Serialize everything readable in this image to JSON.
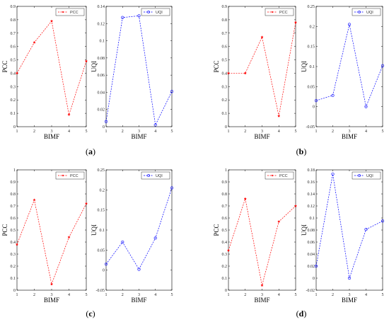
{
  "panels": [
    {
      "label": "(a)",
      "label_letter": "a"
    },
    {
      "label": "(b)",
      "label_letter": "b"
    },
    {
      "label": "(c)",
      "label_letter": "c"
    },
    {
      "label": "(d)",
      "label_letter": "d"
    }
  ],
  "colors": {
    "pcc": "#ff0000",
    "uqi": "#0000ff",
    "axis": "#000000"
  },
  "chart_data": [
    {
      "panel": "a",
      "type": "line",
      "xlabel": "BIMF",
      "ylabel": "PCC",
      "x": [
        1,
        2,
        3,
        4,
        5
      ],
      "xlim": [
        1,
        5
      ],
      "ylim": [
        0,
        0.9
      ],
      "yticks": [
        "0",
        "0.1",
        "0.2",
        "0.3",
        "0.4",
        "0.5",
        "0.6",
        "0.7",
        "0.8",
        "0.9"
      ],
      "xticks": [
        "1",
        "2",
        "3",
        "4",
        "5"
      ],
      "series": [
        {
          "name": "PCC",
          "values": [
            0.4,
            0.63,
            0.79,
            0.09,
            0.49
          ],
          "marker": "star",
          "color": "#ff0000"
        }
      ],
      "legend": "top-right"
    },
    {
      "panel": "a",
      "type": "line",
      "xlabel": "BIMF",
      "ylabel": "UQI",
      "x": [
        1,
        2,
        3,
        4,
        5
      ],
      "xlim": [
        1,
        5
      ],
      "ylim": [
        0,
        0.14
      ],
      "yticks": [
        "0",
        "0.02",
        "0.04",
        "0.06",
        "0.08",
        "0.1",
        "0.12",
        "0.14"
      ],
      "xticks": [
        "1",
        "2",
        "3",
        "4",
        "5"
      ],
      "series": [
        {
          "name": "UQI",
          "values": [
            0.006,
            0.127,
            0.129,
            0.002,
            0.041
          ],
          "marker": "circle",
          "color": "#0000ff"
        }
      ],
      "legend": "top-right"
    },
    {
      "panel": "b",
      "type": "line",
      "xlabel": "BIMF",
      "ylabel": "PCC",
      "x": [
        1,
        2,
        3,
        4,
        5
      ],
      "xlim": [
        1,
        5
      ],
      "ylim": [
        0,
        0.9
      ],
      "yticks": [
        "0",
        "0.1",
        "0.2",
        "0.3",
        "0.4",
        "0.5",
        "0.6",
        "0.7",
        "0.8",
        "0.9"
      ],
      "xticks": [
        "1",
        "2",
        "3",
        "4",
        "5"
      ],
      "series": [
        {
          "name": "PCC",
          "values": [
            0.4,
            0.4,
            0.67,
            0.08,
            0.78
          ],
          "marker": "star",
          "color": "#ff0000"
        }
      ],
      "legend": "top-right"
    },
    {
      "panel": "b",
      "type": "line",
      "xlabel": "BIMF",
      "ylabel": "UQI",
      "x": [
        1,
        2,
        3,
        4,
        5
      ],
      "xlim": [
        1,
        5
      ],
      "ylim": [
        -0.05,
        0.25
      ],
      "yticks": [
        "-0.05",
        "0",
        "0.05",
        "0.1",
        "0.15",
        "0.2",
        "0.25"
      ],
      "xticks": [
        "1",
        "2",
        "3",
        "4",
        "5"
      ],
      "series": [
        {
          "name": "UQI",
          "values": [
            0.015,
            0.028,
            0.205,
            0.0,
            0.102
          ],
          "marker": "circle",
          "color": "#0000ff"
        }
      ],
      "legend": "top-right"
    },
    {
      "panel": "c",
      "type": "line",
      "xlabel": "BIMF",
      "ylabel": "PCC",
      "x": [
        1,
        2,
        3,
        4,
        5
      ],
      "xlim": [
        1,
        5
      ],
      "ylim": [
        0,
        1
      ],
      "yticks": [
        "0",
        "0.1",
        "0.2",
        "0.3",
        "0.4",
        "0.5",
        "0.6",
        "0.7",
        "0.8",
        "0.9",
        "1"
      ],
      "xticks": [
        "1",
        "2",
        "3",
        "4",
        "5"
      ],
      "series": [
        {
          "name": "PCC",
          "values": [
            0.38,
            0.75,
            0.05,
            0.44,
            0.72
          ],
          "marker": "star",
          "color": "#ff0000"
        }
      ],
      "legend": "top-right"
    },
    {
      "panel": "c",
      "type": "line",
      "xlabel": "BIMF",
      "ylabel": "UQI",
      "x": [
        1,
        2,
        3,
        4,
        5
      ],
      "xlim": [
        1,
        5
      ],
      "ylim": [
        -0.05,
        0.25
      ],
      "yticks": [
        "-0.05",
        "0",
        "0.05",
        "0.1",
        "0.15",
        "0.2",
        "0.25"
      ],
      "xticks": [
        "1",
        "2",
        "3",
        "4",
        "5"
      ],
      "series": [
        {
          "name": "UQI",
          "values": [
            0.015,
            0.07,
            0.002,
            0.08,
            0.205
          ],
          "marker": "circle",
          "color": "#0000ff"
        }
      ],
      "legend": "top-right"
    },
    {
      "panel": "d",
      "type": "line",
      "xlabel": "BIMF",
      "ylabel": "PCC",
      "x": [
        1,
        2,
        3,
        4,
        5
      ],
      "xlim": [
        1,
        5
      ],
      "ylim": [
        0,
        1
      ],
      "yticks": [
        "0",
        "0.1",
        "0.2",
        "0.3",
        "0.4",
        "0.5",
        "0.6",
        "0.7",
        "0.8",
        "0.9",
        "1"
      ],
      "xticks": [
        "1",
        "2",
        "3",
        "4",
        "5"
      ],
      "series": [
        {
          "name": "PCC",
          "values": [
            0.33,
            0.76,
            0.04,
            0.57,
            0.7
          ],
          "marker": "star",
          "color": "#ff0000"
        }
      ],
      "legend": "top-right"
    },
    {
      "panel": "d",
      "type": "line",
      "xlabel": "BIMF",
      "ylabel": "UQI",
      "x": [
        1,
        2,
        3,
        4,
        5
      ],
      "xlim": [
        1,
        5
      ],
      "ylim": [
        -0.02,
        0.18
      ],
      "yticks": [
        "-0.02",
        "0",
        "0.02",
        "0.04",
        "0.06",
        "0.08",
        "0.1",
        "0.12",
        "0.14",
        "0.16",
        "0.18"
      ],
      "xticks": [
        "1",
        "2",
        "3",
        "4",
        "5"
      ],
      "series": [
        {
          "name": "UQI",
          "values": [
            0.02,
            0.173,
            0.0,
            0.081,
            0.095
          ],
          "marker": "circle",
          "color": "#0000ff"
        }
      ],
      "legend": "top-right"
    }
  ]
}
